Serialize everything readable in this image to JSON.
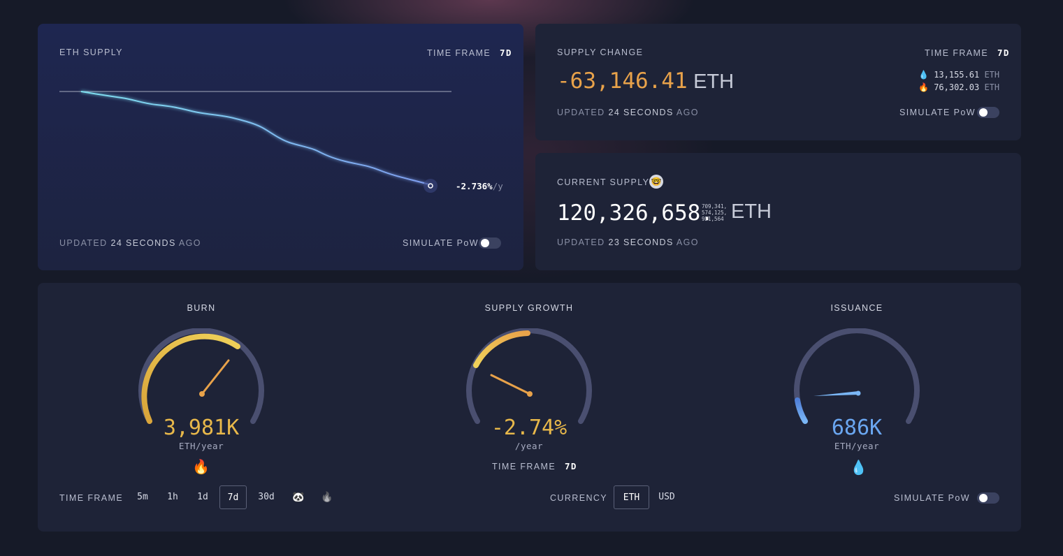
{
  "eth_supply_card": {
    "title": "ETH SUPPLY",
    "time_frame_label": "TIME FRAME",
    "time_frame_value": "7d",
    "rate_value": "-2.736%",
    "rate_unit": "/y",
    "updated_prefix": "UPDATED",
    "updated_value": "24 SECONDS",
    "updated_suffix": "AGO",
    "simulate_label": "SIMULATE PoW"
  },
  "supply_change_card": {
    "title": "SUPPLY CHANGE",
    "time_frame_label": "TIME FRAME",
    "time_frame_value": "7d",
    "value": "-63,146.41",
    "unit": "ETH",
    "issuance_value": "13,155.61",
    "issuance_unit": "ETH",
    "burn_value": "76,302.03",
    "burn_unit": "ETH",
    "updated_prefix": "UPDATED",
    "updated_value": "24 SECONDS",
    "updated_suffix": "AGO",
    "simulate_label": "SIMULATE PoW"
  },
  "current_supply_card": {
    "title": "CURRENT SUPPLY",
    "value": "120,326,658.",
    "decimals_line1": "709,341,",
    "decimals_line2": "574,125,",
    "decimals_line3": "921,564",
    "unit": "ETH",
    "updated_prefix": "UPDATED",
    "updated_value": "23 SECONDS",
    "updated_suffix": "AGO"
  },
  "gauges": {
    "burn": {
      "title": "BURN",
      "value": "3,981K",
      "unit": "ETH/year",
      "color": "#e8b84a"
    },
    "supply_growth": {
      "title": "SUPPLY GROWTH",
      "value": "-2.74%",
      "unit": "/year",
      "time_frame_label": "TIME FRAME",
      "time_frame_value": "7d",
      "color": "#e8b84a"
    },
    "issuance": {
      "title": "ISSUANCE",
      "value": "686K",
      "unit": "ETH/year",
      "color": "#6aa6f0"
    }
  },
  "controls": {
    "time_frame_label": "TIME FRAME",
    "time_frames": [
      "5m",
      "1h",
      "1d",
      "7d",
      "30d"
    ],
    "selected_time_frame": "7d",
    "currency_label": "CURRENCY",
    "currency_options": [
      "ETH",
      "USD"
    ],
    "selected_currency": "ETH",
    "simulate_label": "SIMULATE PoW"
  },
  "icons": {
    "water": "droplet-icon",
    "fire": "fire-icon",
    "nerd": "nerd-face-icon",
    "panda": "panda-icon",
    "flame_gray": "flame-icon"
  },
  "colors": {
    "orange_value": "#e8a24a",
    "chart_line": "#7fd3f0",
    "issuance_blue": "#6aa6f0"
  }
}
